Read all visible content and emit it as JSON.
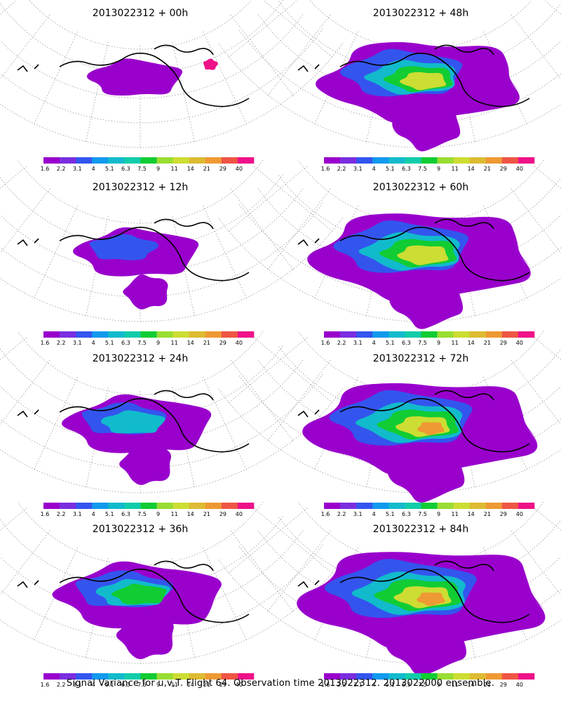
{
  "panels": [
    {
      "title": "2013022312 + 00h",
      "coverage": 0.15
    },
    {
      "title": "2013022312 + 12h",
      "coverage": 0.3
    },
    {
      "title": "2013022312 + 24h",
      "coverage": 0.42
    },
    {
      "title": "2013022312 + 36h",
      "coverage": 0.52
    },
    {
      "title": "2013022312 + 48h",
      "coverage": 0.72
    },
    {
      "title": "2013022312 + 60h",
      "coverage": 0.82
    },
    {
      "title": "2013022312 + 72h",
      "coverage": 0.88
    },
    {
      "title": "2013022312 + 84h",
      "coverage": 0.95
    }
  ],
  "colorbar": {
    "labels": [
      "1.6",
      "2.2",
      "3.1",
      "4",
      "5.1",
      "6.3",
      "7.5",
      "9",
      "11",
      "14",
      "21",
      "29",
      "40"
    ],
    "colors": [
      "#9900cc",
      "#7a2ee0",
      "#3355ee",
      "#1199ee",
      "#11bbcc",
      "#11ccaa",
      "#11cc33",
      "#99dd33",
      "#ccdd33",
      "#ddbb33",
      "#ee9933",
      "#ee5544",
      "#ee1188"
    ]
  },
  "caption": "Signal Variance for u,v,T. Flight 64. Observation time 2013022312. 2013022000 ensemble."
}
